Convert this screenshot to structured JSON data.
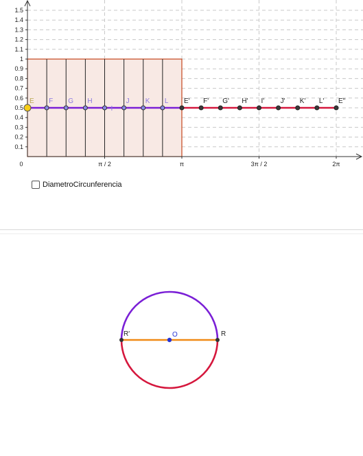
{
  "graph": {
    "y_ticks": [
      "0.1",
      "0.2",
      "0.3",
      "0.4",
      "0.5",
      "0.6",
      "0.7",
      "0.8",
      "0.9",
      "1",
      "1.1",
      "1.2",
      "1.3",
      "1.4",
      "1.5"
    ],
    "x_ticks": [
      {
        "label": "0",
        "value": 0
      },
      {
        "label": "π / 2",
        "value": 0.5
      },
      {
        "label": "π",
        "value": 1.0
      },
      {
        "label": "3π / 2",
        "value": 1.5
      },
      {
        "label": "2π",
        "value": 2.0
      }
    ],
    "rectangle_height": 1,
    "segment_y": 0.5,
    "points_left": [
      "E",
      "F",
      "G",
      "H",
      "I",
      "J",
      "K",
      "L"
    ],
    "points_right": [
      "E'",
      "F'",
      "G'",
      "H'",
      "I'",
      "J'",
      "K'",
      "L'",
      "E''"
    ],
    "colors": {
      "left_line": "#7a1fd6",
      "right_line": "#d5173d",
      "rect_fill": "#f8e9e4",
      "rect_stroke": "#c4441a",
      "highlight_point": "#f6cc16",
      "point": "#3a3a3a",
      "left_label": "#8a78e0",
      "right_label": "#222222"
    }
  },
  "checkbox": {
    "label": "DiametroCircunferencia",
    "checked": false
  },
  "circle": {
    "center_label": "O",
    "left_label": "R'",
    "right_label": "R",
    "colors": {
      "top_arc": "#7a1fd6",
      "bottom_arc": "#d5173d",
      "diameter": "#f08a15",
      "center": "#2733d4"
    }
  }
}
